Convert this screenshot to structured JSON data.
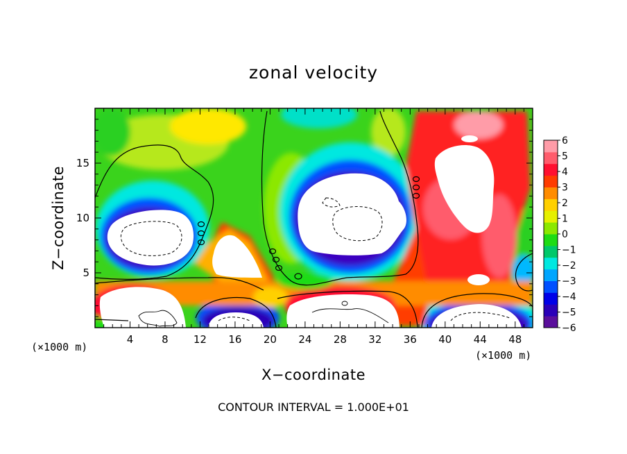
{
  "chart_data": {
    "type": "heatmap",
    "title": "zonal velocity",
    "xlabel": "X−coordinate",
    "ylabel": "Z−coordinate",
    "x_unit": "(×1000 m)",
    "z_unit": "(×1000 m)",
    "xlim": [
      0,
      50
    ],
    "zlim": [
      0,
      20
    ],
    "x_ticks": [
      4,
      8,
      12,
      16,
      20,
      24,
      28,
      32,
      36,
      40,
      44,
      48
    ],
    "x_tick_labels": [
      "4",
      "8",
      "12",
      "16",
      "20",
      "24",
      "28",
      "32",
      "36",
      "40",
      "44",
      "48"
    ],
    "z_ticks": [
      5,
      10,
      15
    ],
    "z_tick_labels": [
      "5",
      "10",
      "15"
    ],
    "colorbar": {
      "min": -6,
      "max": 6,
      "tick_labels": [
        "6",
        "5",
        "4",
        "3",
        "2",
        "1",
        "0",
        "−1",
        "−2",
        "−3",
        "−4",
        "−5",
        "−6"
      ],
      "colors": [
        "#5b0f9c",
        "#2a00b8",
        "#0000e8",
        "#0050ff",
        "#00a6ff",
        "#00e8e0",
        "#00c86a",
        "#1edc14",
        "#8ce800",
        "#e6f000",
        "#ffd000",
        "#ff8c00",
        "#ff3c00",
        "#ff1030",
        "#ff5c6c",
        "#ff9ca8"
      ]
    },
    "note": "CONTOUR INTERVAL = 1.000E+01"
  },
  "colors": {
    "background": "#ffffff",
    "over_range": "#ffffff",
    "contour": "#000000"
  }
}
